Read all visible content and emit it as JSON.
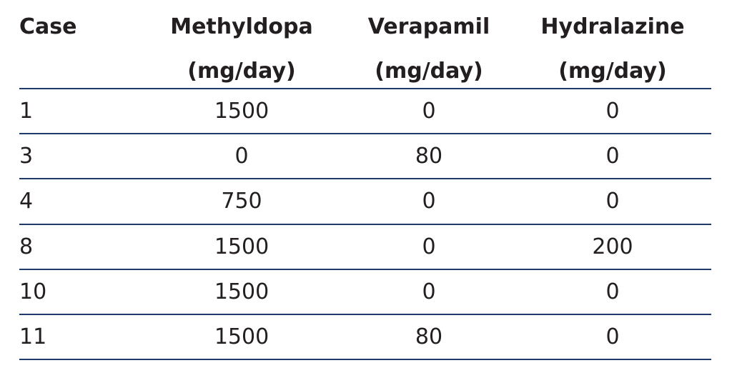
{
  "table": {
    "header": [
      {
        "name": "Case"
      },
      {
        "name": "Methyldopa",
        "unit": "(mg/day)"
      },
      {
        "name": "Verapamil",
        "unit": "(mg/day)"
      },
      {
        "name": "Hydralazine",
        "unit": "(mg/day)"
      }
    ],
    "rows": [
      [
        1,
        1500,
        0,
        0
      ],
      [
        3,
        0,
        80,
        0
      ],
      [
        4,
        750,
        0,
        0
      ],
      [
        8,
        1500,
        0,
        200
      ],
      [
        10,
        1500,
        0,
        0
      ],
      [
        11,
        1500,
        80,
        0
      ]
    ]
  }
}
